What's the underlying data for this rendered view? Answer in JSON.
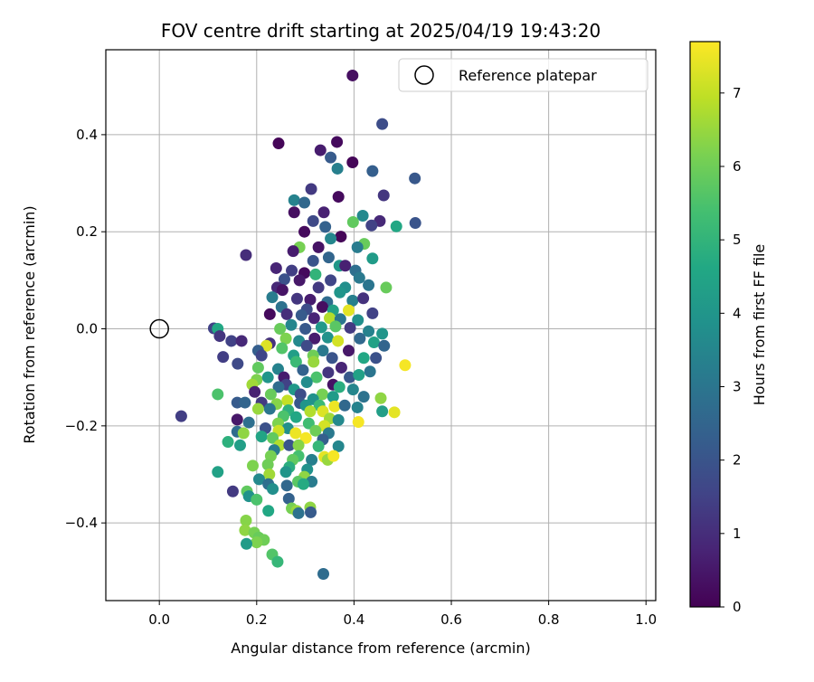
{
  "chart_data": {
    "type": "scatter",
    "title": "FOV centre drift starting at 2025/04/19 19:43:20",
    "xlabel": "Angular distance from reference (arcmin)",
    "ylabel": "Rotation from reference (arcmin)",
    "xlim": [
      -0.11,
      1.02
    ],
    "ylim": [
      -0.56,
      0.575
    ],
    "xticks": [
      0.0,
      0.2,
      0.4,
      0.6,
      0.8,
      1.0
    ],
    "xtick_labels": [
      "0.0",
      "0.2",
      "0.4",
      "0.6",
      "0.8",
      "1.0"
    ],
    "yticks": [
      -0.4,
      -0.2,
      0.0,
      0.2,
      0.4
    ],
    "ytick_labels": [
      "−0.4",
      "−0.2",
      "0.0",
      "0.2",
      "0.4"
    ],
    "grid": true,
    "legend": {
      "position": "top-right",
      "entries": [
        "Reference platepar"
      ]
    },
    "reference_point": {
      "x": 0.0,
      "y": 0.0,
      "marker": "open-circle"
    },
    "colorbar": {
      "label": "Hours from first FF file",
      "min": 0,
      "max": 7.7,
      "ticks": [
        0,
        1,
        2,
        3,
        4,
        5,
        6,
        7
      ],
      "tick_labels": [
        "0",
        "1",
        "2",
        "3",
        "4",
        "5",
        "6",
        "7"
      ],
      "colormap": "viridis"
    },
    "points": [
      {
        "x": 0.397,
        "y": 0.522,
        "h": 0.3
      },
      {
        "x": 0.458,
        "y": 0.422,
        "h": 1.8
      },
      {
        "x": 0.245,
        "y": 0.382,
        "h": 0.1
      },
      {
        "x": 0.365,
        "y": 0.385,
        "h": 0.2
      },
      {
        "x": 0.331,
        "y": 0.368,
        "h": 0.6
      },
      {
        "x": 0.352,
        "y": 0.353,
        "h": 2.2
      },
      {
        "x": 0.397,
        "y": 0.343,
        "h": 0.1
      },
      {
        "x": 0.366,
        "y": 0.33,
        "h": 3.3
      },
      {
        "x": 0.438,
        "y": 0.325,
        "h": 2.3
      },
      {
        "x": 0.525,
        "y": 0.31,
        "h": 2.1
      },
      {
        "x": 0.312,
        "y": 0.288,
        "h": 1.3
      },
      {
        "x": 0.368,
        "y": 0.272,
        "h": 0.2
      },
      {
        "x": 0.461,
        "y": 0.275,
        "h": 1.2
      },
      {
        "x": 0.277,
        "y": 0.265,
        "h": 3.4
      },
      {
        "x": 0.298,
        "y": 0.26,
        "h": 2.6
      },
      {
        "x": 0.338,
        "y": 0.24,
        "h": 0.7
      },
      {
        "x": 0.277,
        "y": 0.24,
        "h": 0.3
      },
      {
        "x": 0.418,
        "y": 0.233,
        "h": 3.6
      },
      {
        "x": 0.526,
        "y": 0.218,
        "h": 2.0
      },
      {
        "x": 0.453,
        "y": 0.222,
        "h": 0.9
      },
      {
        "x": 0.316,
        "y": 0.222,
        "h": 1.7
      },
      {
        "x": 0.398,
        "y": 0.22,
        "h": 5.8
      },
      {
        "x": 0.487,
        "y": 0.211,
        "h": 4.6
      },
      {
        "x": 0.436,
        "y": 0.213,
        "h": 1.5
      },
      {
        "x": 0.341,
        "y": 0.21,
        "h": 2.4
      },
      {
        "x": 0.298,
        "y": 0.2,
        "h": 0.2
      },
      {
        "x": 0.373,
        "y": 0.19,
        "h": 0.1
      },
      {
        "x": 0.352,
        "y": 0.186,
        "h": 3.5
      },
      {
        "x": 0.421,
        "y": 0.175,
        "h": 5.9
      },
      {
        "x": 0.288,
        "y": 0.168,
        "h": 6.1
      },
      {
        "x": 0.327,
        "y": 0.168,
        "h": 0.4
      },
      {
        "x": 0.407,
        "y": 0.168,
        "h": 3.2
      },
      {
        "x": 0.275,
        "y": 0.16,
        "h": 0.6
      },
      {
        "x": 0.178,
        "y": 0.152,
        "h": 1.0
      },
      {
        "x": 0.348,
        "y": 0.147,
        "h": 2.5
      },
      {
        "x": 0.438,
        "y": 0.145,
        "h": 4.2
      },
      {
        "x": 0.316,
        "y": 0.14,
        "h": 2.0
      },
      {
        "x": 0.37,
        "y": 0.13,
        "h": 4.1
      },
      {
        "x": 0.382,
        "y": 0.13,
        "h": 0.7
      },
      {
        "x": 0.24,
        "y": 0.125,
        "h": 0.8
      },
      {
        "x": 0.272,
        "y": 0.12,
        "h": 1.4
      },
      {
        "x": 0.298,
        "y": 0.115,
        "h": 0.2
      },
      {
        "x": 0.321,
        "y": 0.112,
        "h": 5.0
      },
      {
        "x": 0.403,
        "y": 0.12,
        "h": 2.8
      },
      {
        "x": 0.257,
        "y": 0.102,
        "h": 1.9
      },
      {
        "x": 0.288,
        "y": 0.1,
        "h": 0.5
      },
      {
        "x": 0.352,
        "y": 0.1,
        "h": 1.6
      },
      {
        "x": 0.411,
        "y": 0.105,
        "h": 3.1
      },
      {
        "x": 0.242,
        "y": 0.085,
        "h": 0.9
      },
      {
        "x": 0.327,
        "y": 0.085,
        "h": 1.3
      },
      {
        "x": 0.382,
        "y": 0.085,
        "h": 3.8
      },
      {
        "x": 0.43,
        "y": 0.09,
        "h": 3.0
      },
      {
        "x": 0.466,
        "y": 0.085,
        "h": 5.9
      },
      {
        "x": 0.253,
        "y": 0.08,
        "h": 0.4
      },
      {
        "x": 0.371,
        "y": 0.075,
        "h": 4.0
      },
      {
        "x": 0.232,
        "y": 0.065,
        "h": 3.2
      },
      {
        "x": 0.283,
        "y": 0.062,
        "h": 1.2
      },
      {
        "x": 0.31,
        "y": 0.06,
        "h": 0.6
      },
      {
        "x": 0.345,
        "y": 0.055,
        "h": 2.7
      },
      {
        "x": 0.397,
        "y": 0.058,
        "h": 3.3
      },
      {
        "x": 0.419,
        "y": 0.063,
        "h": 1.1
      },
      {
        "x": 0.251,
        "y": 0.045,
        "h": 2.9
      },
      {
        "x": 0.303,
        "y": 0.04,
        "h": 1.8
      },
      {
        "x": 0.335,
        "y": 0.045,
        "h": 0.3
      },
      {
        "x": 0.389,
        "y": 0.038,
        "h": 7.4
      },
      {
        "x": 0.357,
        "y": 0.038,
        "h": 4.4
      },
      {
        "x": 0.438,
        "y": 0.032,
        "h": 1.5
      },
      {
        "x": 0.227,
        "y": 0.03,
        "h": 0.2
      },
      {
        "x": 0.262,
        "y": 0.03,
        "h": 1.0
      },
      {
        "x": 0.292,
        "y": 0.028,
        "h": 2.2
      },
      {
        "x": 0.318,
        "y": 0.022,
        "h": 0.8
      },
      {
        "x": 0.35,
        "y": 0.022,
        "h": 6.8
      },
      {
        "x": 0.372,
        "y": 0.02,
        "h": 3.0
      },
      {
        "x": 0.408,
        "y": 0.018,
        "h": 3.8
      },
      {
        "x": 0.112,
        "y": 0.001,
        "h": 1.5
      },
      {
        "x": 0.12,
        "y": 0.0,
        "h": 4.6
      },
      {
        "x": 0.248,
        "y": 0.0,
        "h": 5.9
      },
      {
        "x": 0.271,
        "y": 0.008,
        "h": 3.5
      },
      {
        "x": 0.3,
        "y": 0.0,
        "h": 2.1
      },
      {
        "x": 0.333,
        "y": 0.003,
        "h": 4.1
      },
      {
        "x": 0.362,
        "y": 0.005,
        "h": 5.7
      },
      {
        "x": 0.392,
        "y": 0.002,
        "h": 1.3
      },
      {
        "x": 0.43,
        "y": -0.005,
        "h": 3.4
      },
      {
        "x": 0.458,
        "y": -0.01,
        "h": 4.0
      },
      {
        "x": 0.124,
        "y": -0.015,
        "h": 1.2
      },
      {
        "x": 0.26,
        "y": -0.02,
        "h": 6.2
      },
      {
        "x": 0.287,
        "y": -0.025,
        "h": 3.6
      },
      {
        "x": 0.319,
        "y": -0.02,
        "h": 0.6
      },
      {
        "x": 0.346,
        "y": -0.018,
        "h": 3.9
      },
      {
        "x": 0.367,
        "y": -0.025,
        "h": 7.2
      },
      {
        "x": 0.412,
        "y": -0.02,
        "h": 2.6
      },
      {
        "x": 0.441,
        "y": -0.028,
        "h": 4.4
      },
      {
        "x": 0.148,
        "y": -0.025,
        "h": 1.5
      },
      {
        "x": 0.169,
        "y": -0.025,
        "h": 0.9
      },
      {
        "x": 0.227,
        "y": -0.03,
        "h": 1.1
      },
      {
        "x": 0.22,
        "y": -0.035,
        "h": 7.3
      },
      {
        "x": 0.462,
        "y": -0.035,
        "h": 2.5
      },
      {
        "x": 0.252,
        "y": -0.04,
        "h": 5.6
      },
      {
        "x": 0.303,
        "y": -0.035,
        "h": 1.7
      },
      {
        "x": 0.336,
        "y": -0.045,
        "h": 3.1
      },
      {
        "x": 0.389,
        "y": -0.045,
        "h": 0.5
      },
      {
        "x": 0.203,
        "y": -0.045,
        "h": 2.3
      },
      {
        "x": 0.21,
        "y": -0.055,
        "h": 1.6
      },
      {
        "x": 0.276,
        "y": -0.055,
        "h": 4.3
      },
      {
        "x": 0.316,
        "y": -0.055,
        "h": 6.0
      },
      {
        "x": 0.131,
        "y": -0.058,
        "h": 1.4
      },
      {
        "x": 0.355,
        "y": -0.06,
        "h": 2.0
      },
      {
        "x": 0.42,
        "y": -0.06,
        "h": 4.6
      },
      {
        "x": 0.445,
        "y": -0.06,
        "h": 1.9
      },
      {
        "x": 0.281,
        "y": -0.068,
        "h": 5.2
      },
      {
        "x": 0.317,
        "y": -0.068,
        "h": 6.5
      },
      {
        "x": 0.161,
        "y": -0.072,
        "h": 1.7
      },
      {
        "x": 0.203,
        "y": -0.08,
        "h": 5.8
      },
      {
        "x": 0.374,
        "y": -0.08,
        "h": 0.8
      },
      {
        "x": 0.505,
        "y": -0.075,
        "h": 7.6
      },
      {
        "x": 0.244,
        "y": -0.083,
        "h": 3.4
      },
      {
        "x": 0.295,
        "y": -0.085,
        "h": 2.4
      },
      {
        "x": 0.347,
        "y": -0.09,
        "h": 1.2
      },
      {
        "x": 0.433,
        "y": -0.088,
        "h": 3.0
      },
      {
        "x": 0.256,
        "y": -0.1,
        "h": 0.6
      },
      {
        "x": 0.323,
        "y": -0.1,
        "h": 5.5
      },
      {
        "x": 0.391,
        "y": -0.1,
        "h": 2.1
      },
      {
        "x": 0.41,
        "y": -0.095,
        "h": 4.4
      },
      {
        "x": 0.2,
        "y": -0.105,
        "h": 6.2
      },
      {
        "x": 0.223,
        "y": -0.1,
        "h": 4.0
      },
      {
        "x": 0.261,
        "y": -0.115,
        "h": 1.5
      },
      {
        "x": 0.303,
        "y": -0.11,
        "h": 3.7
      },
      {
        "x": 0.357,
        "y": -0.115,
        "h": 0.4
      },
      {
        "x": 0.37,
        "y": -0.12,
        "h": 4.8
      },
      {
        "x": 0.191,
        "y": -0.115,
        "h": 6.6
      },
      {
        "x": 0.245,
        "y": -0.12,
        "h": 2.7
      },
      {
        "x": 0.277,
        "y": -0.125,
        "h": 4.1
      },
      {
        "x": 0.398,
        "y": -0.125,
        "h": 3.5
      },
      {
        "x": 0.196,
        "y": -0.13,
        "h": 0.7
      },
      {
        "x": 0.229,
        "y": -0.135,
        "h": 5.9
      },
      {
        "x": 0.29,
        "y": -0.135,
        "h": 1.8
      },
      {
        "x": 0.335,
        "y": -0.135,
        "h": 6.1
      },
      {
        "x": 0.12,
        "y": -0.135,
        "h": 5.5
      },
      {
        "x": 0.42,
        "y": -0.14,
        "h": 2.9
      },
      {
        "x": 0.455,
        "y": -0.143,
        "h": 6.4
      },
      {
        "x": 0.316,
        "y": -0.145,
        "h": 3.9
      },
      {
        "x": 0.357,
        "y": -0.14,
        "h": 4.2
      },
      {
        "x": 0.263,
        "y": -0.148,
        "h": 7.0
      },
      {
        "x": 0.16,
        "y": -0.152,
        "h": 2.2
      },
      {
        "x": 0.176,
        "y": -0.152,
        "h": 2.5
      },
      {
        "x": 0.21,
        "y": -0.152,
        "h": 1.3
      },
      {
        "x": 0.241,
        "y": -0.155,
        "h": 6.3
      },
      {
        "x": 0.289,
        "y": -0.153,
        "h": 2.1
      },
      {
        "x": 0.301,
        "y": -0.158,
        "h": 4.0
      },
      {
        "x": 0.329,
        "y": -0.158,
        "h": 5.2
      },
      {
        "x": 0.36,
        "y": -0.16,
        "h": 7.5
      },
      {
        "x": 0.381,
        "y": -0.158,
        "h": 2.6
      },
      {
        "x": 0.407,
        "y": -0.162,
        "h": 3.4
      },
      {
        "x": 0.458,
        "y": -0.17,
        "h": 4.3
      },
      {
        "x": 0.483,
        "y": -0.172,
        "h": 7.4
      },
      {
        "x": 0.203,
        "y": -0.165,
        "h": 6.5
      },
      {
        "x": 0.227,
        "y": -0.165,
        "h": 3.0
      },
      {
        "x": 0.265,
        "y": -0.168,
        "h": 4.9
      },
      {
        "x": 0.31,
        "y": -0.17,
        "h": 6.8
      },
      {
        "x": 0.336,
        "y": -0.17,
        "h": 7.3
      },
      {
        "x": 0.045,
        "y": -0.18,
        "h": 1.4
      },
      {
        "x": 0.16,
        "y": -0.187,
        "h": 0.5
      },
      {
        "x": 0.255,
        "y": -0.18,
        "h": 5.5
      },
      {
        "x": 0.281,
        "y": -0.182,
        "h": 4.6
      },
      {
        "x": 0.35,
        "y": -0.185,
        "h": 6.6
      },
      {
        "x": 0.368,
        "y": -0.188,
        "h": 3.6
      },
      {
        "x": 0.409,
        "y": -0.192,
        "h": 7.6
      },
      {
        "x": 0.184,
        "y": -0.193,
        "h": 2.8
      },
      {
        "x": 0.244,
        "y": -0.195,
        "h": 6.2
      },
      {
        "x": 0.307,
        "y": -0.195,
        "h": 5.3
      },
      {
        "x": 0.339,
        "y": -0.2,
        "h": 7.2
      },
      {
        "x": 0.218,
        "y": -0.205,
        "h": 1.9
      },
      {
        "x": 0.264,
        "y": -0.205,
        "h": 3.8
      },
      {
        "x": 0.321,
        "y": -0.21,
        "h": 6.0
      },
      {
        "x": 0.16,
        "y": -0.212,
        "h": 2.7
      },
      {
        "x": 0.173,
        "y": -0.215,
        "h": 6.4
      },
      {
        "x": 0.245,
        "y": -0.21,
        "h": 7.1
      },
      {
        "x": 0.28,
        "y": -0.215,
        "h": 7.5
      },
      {
        "x": 0.348,
        "y": -0.215,
        "h": 3.1
      },
      {
        "x": 0.21,
        "y": -0.222,
        "h": 4.5
      },
      {
        "x": 0.233,
        "y": -0.225,
        "h": 5.8
      },
      {
        "x": 0.301,
        "y": -0.225,
        "h": 7.6
      },
      {
        "x": 0.336,
        "y": -0.228,
        "h": 2.3
      },
      {
        "x": 0.141,
        "y": -0.233,
        "h": 4.9
      },
      {
        "x": 0.166,
        "y": -0.24,
        "h": 4.3
      },
      {
        "x": 0.247,
        "y": -0.24,
        "h": 6.8
      },
      {
        "x": 0.267,
        "y": -0.24,
        "h": 2.0
      },
      {
        "x": 0.286,
        "y": -0.24,
        "h": 6.3
      },
      {
        "x": 0.327,
        "y": -0.242,
        "h": 5.1
      },
      {
        "x": 0.368,
        "y": -0.242,
        "h": 3.5
      },
      {
        "x": 0.236,
        "y": -0.25,
        "h": 3.2
      },
      {
        "x": 0.229,
        "y": -0.262,
        "h": 6.1
      },
      {
        "x": 0.286,
        "y": -0.262,
        "h": 5.4
      },
      {
        "x": 0.339,
        "y": -0.264,
        "h": 7.4
      },
      {
        "x": 0.346,
        "y": -0.27,
        "h": 6.5
      },
      {
        "x": 0.358,
        "y": -0.262,
        "h": 7.6
      },
      {
        "x": 0.313,
        "y": -0.27,
        "h": 3.3
      },
      {
        "x": 0.274,
        "y": -0.27,
        "h": 5.8
      },
      {
        "x": 0.192,
        "y": -0.282,
        "h": 6.2
      },
      {
        "x": 0.223,
        "y": -0.28,
        "h": 6.0
      },
      {
        "x": 0.267,
        "y": -0.285,
        "h": 4.8
      },
      {
        "x": 0.304,
        "y": -0.29,
        "h": 3.9
      },
      {
        "x": 0.12,
        "y": -0.295,
        "h": 4.4
      },
      {
        "x": 0.226,
        "y": -0.3,
        "h": 6.6
      },
      {
        "x": 0.26,
        "y": -0.295,
        "h": 4.0
      },
      {
        "x": 0.298,
        "y": -0.305,
        "h": 6.4
      },
      {
        "x": 0.205,
        "y": -0.31,
        "h": 3.6
      },
      {
        "x": 0.224,
        "y": -0.32,
        "h": 2.8
      },
      {
        "x": 0.285,
        "y": -0.315,
        "h": 5.7
      },
      {
        "x": 0.313,
        "y": -0.315,
        "h": 3.2
      },
      {
        "x": 0.262,
        "y": -0.323,
        "h": 2.6
      },
      {
        "x": 0.296,
        "y": -0.32,
        "h": 4.7
      },
      {
        "x": 0.151,
        "y": -0.335,
        "h": 1.3
      },
      {
        "x": 0.18,
        "y": -0.335,
        "h": 5.8
      },
      {
        "x": 0.233,
        "y": -0.33,
        "h": 3.8
      },
      {
        "x": 0.184,
        "y": -0.345,
        "h": 3.9
      },
      {
        "x": 0.2,
        "y": -0.352,
        "h": 5.5
      },
      {
        "x": 0.266,
        "y": -0.35,
        "h": 2.4
      },
      {
        "x": 0.272,
        "y": -0.37,
        "h": 6.1
      },
      {
        "x": 0.282,
        "y": -0.375,
        "h": 6.5
      },
      {
        "x": 0.31,
        "y": -0.368,
        "h": 6.4
      },
      {
        "x": 0.224,
        "y": -0.375,
        "h": 4.6
      },
      {
        "x": 0.286,
        "y": -0.38,
        "h": 2.9
      },
      {
        "x": 0.311,
        "y": -0.378,
        "h": 2.2
      },
      {
        "x": 0.178,
        "y": -0.395,
        "h": 6.3
      },
      {
        "x": 0.176,
        "y": -0.415,
        "h": 6.4
      },
      {
        "x": 0.195,
        "y": -0.42,
        "h": 6.1
      },
      {
        "x": 0.204,
        "y": -0.43,
        "h": 5.9
      },
      {
        "x": 0.215,
        "y": -0.435,
        "h": 6.0
      },
      {
        "x": 0.2,
        "y": -0.44,
        "h": 6.2
      },
      {
        "x": 0.179,
        "y": -0.443,
        "h": 4.2
      },
      {
        "x": 0.232,
        "y": -0.465,
        "h": 5.6
      },
      {
        "x": 0.243,
        "y": -0.48,
        "h": 5.1
      },
      {
        "x": 0.337,
        "y": -0.505,
        "h": 2.7
      }
    ]
  }
}
